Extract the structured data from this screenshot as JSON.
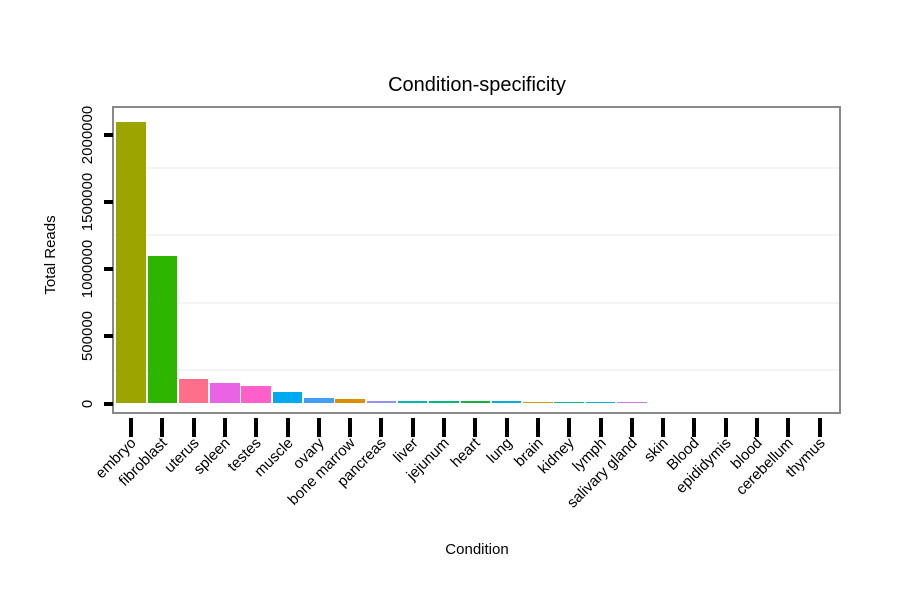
{
  "chart_data": {
    "type": "bar",
    "title": "Condition-specificity",
    "xlabel": "Condition",
    "ylabel": "Total Reads",
    "ylim": [
      0,
      2000000
    ],
    "yticks": [
      0,
      500000,
      1000000,
      1500000,
      2000000
    ],
    "ytick_labels": [
      "0",
      "500000",
      "1000000",
      "1500000",
      "2000000"
    ],
    "minor_gridlines": [
      250000,
      750000,
      1250000,
      1750000
    ],
    "legend": "none",
    "grid": "faint horizontal minor gridlines only",
    "categories": [
      "embryo",
      "fibroblast",
      "uterus",
      "spleen",
      "testes",
      "muscle",
      "ovary",
      "bone marrow",
      "pancreas",
      "liver",
      "jejunum",
      "heart",
      "lung",
      "brain",
      "kidney",
      "lymph",
      "salivary gland",
      "skin",
      "Blood",
      "epididymis",
      "blood",
      "cerebellum",
      "thymus"
    ],
    "values": [
      2090000,
      1100000,
      180000,
      150000,
      130000,
      85000,
      40000,
      30000,
      22000,
      20000,
      18000,
      16000,
      15000,
      14000,
      13000,
      10000,
      9000,
      0,
      0,
      0,
      0,
      0,
      0
    ],
    "bar_colors": [
      "#9ca500",
      "#2eb500",
      "#ff6e8b",
      "#ea63e5",
      "#ff5fc9",
      "#00aaf0",
      "#429ef5",
      "#dc8d00",
      "#9590f5",
      "#00b8b0",
      "#00b878",
      "#14b43c",
      "#00b0d8",
      "#d29a00",
      "#00b890",
      "#00b2dc",
      "#c77de8",
      "#cccccc",
      "#cccccc",
      "#cccccc",
      "#cccccc",
      "#cccccc",
      "#cccccc"
    ]
  },
  "style": {
    "background": "#ffffff",
    "plot_frame_color": "#898989",
    "tick_color": "#000000",
    "gridline_color": "#f4f4f4",
    "text_color": "#000000"
  }
}
